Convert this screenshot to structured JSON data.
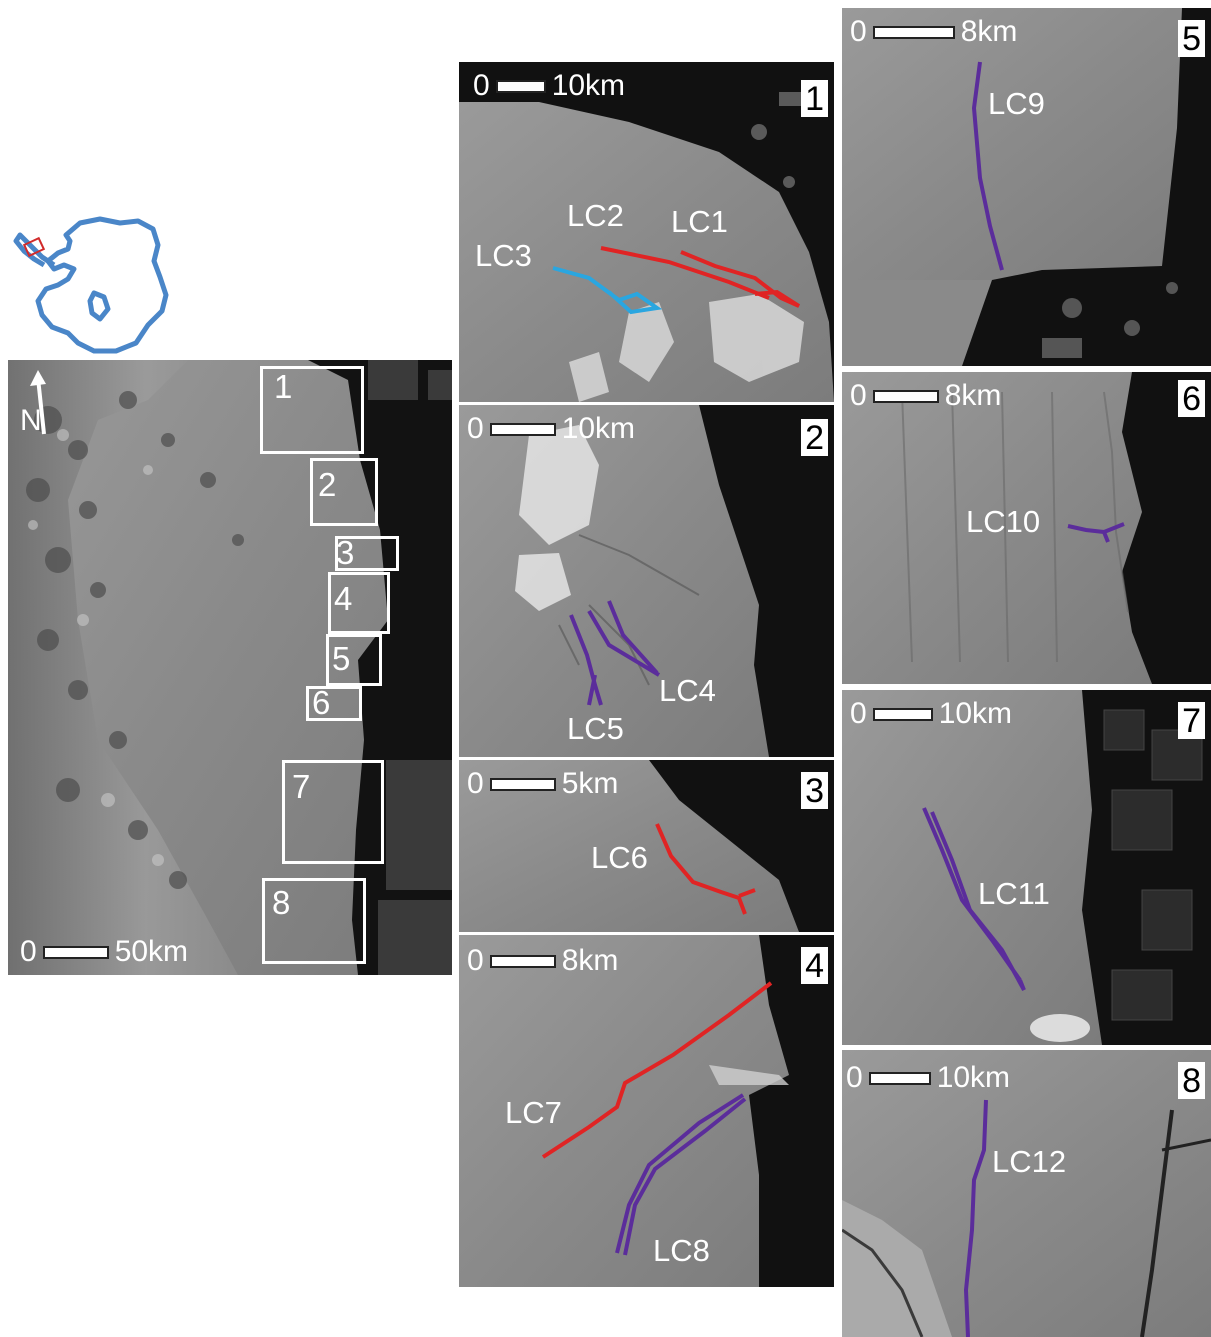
{
  "inset": {
    "outline_color": "#4a86c8",
    "highlight_color": "#d12a2a"
  },
  "overview": {
    "north_label": "N",
    "scale": {
      "zero": "0",
      "label": "50km"
    },
    "boxes": [
      "1",
      "2",
      "3",
      "4",
      "5",
      "6",
      "7",
      "8"
    ]
  },
  "panels": [
    {
      "id": "1",
      "scale": {
        "zero": "0",
        "label": "10km"
      },
      "lines": [
        {
          "label": "LC1",
          "color": "#e02424"
        },
        {
          "label": "LC2",
          "color": "#e02424"
        },
        {
          "label": "LC3",
          "color": "#2aa6e0"
        }
      ]
    },
    {
      "id": "2",
      "scale": {
        "zero": "0",
        "label": "10km"
      },
      "lines": [
        {
          "label": "LC4",
          "color": "#5b2d9b"
        },
        {
          "label": "LC5",
          "color": "#5b2d9b"
        }
      ]
    },
    {
      "id": "3",
      "scale": {
        "zero": "0",
        "label": "5km"
      },
      "lines": [
        {
          "label": "LC6",
          "color": "#e02424"
        }
      ]
    },
    {
      "id": "4",
      "scale": {
        "zero": "0",
        "label": "8km"
      },
      "lines": [
        {
          "label": "LC7",
          "color": "#e02424"
        },
        {
          "label": "LC8",
          "color": "#5b2d9b"
        }
      ]
    },
    {
      "id": "5",
      "scale": {
        "zero": "0",
        "label": "8km"
      },
      "lines": [
        {
          "label": "LC9",
          "color": "#5b2d9b"
        }
      ]
    },
    {
      "id": "6",
      "scale": {
        "zero": "0",
        "label": "8km"
      },
      "lines": [
        {
          "label": "LC10",
          "color": "#5b2d9b"
        }
      ]
    },
    {
      "id": "7",
      "scale": {
        "zero": "0",
        "label": "10km"
      },
      "lines": [
        {
          "label": "LC11",
          "color": "#5b2d9b"
        }
      ]
    },
    {
      "id": "8",
      "scale": {
        "zero": "0",
        "label": "10km"
      },
      "lines": [
        {
          "label": "LC12",
          "color": "#5b2d9b"
        }
      ]
    }
  ]
}
